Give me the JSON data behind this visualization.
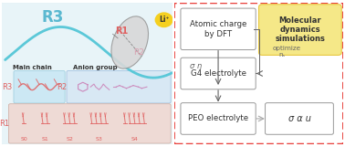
{
  "left_bg": "#e8f4f8",
  "left_border": "#b8d8e8",
  "right_border": "#e8403c",
  "curve_color": "#5bc8d8",
  "li_color": "#f5d020",
  "li_text": "Li⁺",
  "main_chain_label": "Main chain",
  "anion_group_label": "Anion group",
  "r1_label": "R1",
  "r2_label": "R2",
  "r3_label": "R3",
  "s_labels": [
    "S0",
    "S1",
    "S2",
    "S3",
    "S4"
  ],
  "box1_text": "Atomic charge\nby DFT",
  "box2_text": "G4 electrolyte",
  "box3_text": "PEO electrolyte",
  "box4_text": "σ α u",
  "yellow_box_text": "Molecular\ndynamics\nsimulations",
  "sigma_eta_label": "σ η",
  "optimize_label": "optimize",
  "ns_label": "nₛ",
  "box_border": "#999999",
  "text_red": "#e06060",
  "text_pink": "#d8a0b0",
  "text_blue": "#5ab8d0",
  "text_dark": "#555555",
  "yellow_bg": "#f5e888",
  "yellow_border": "#e8c840",
  "r3_box_bg": "#cce8f4",
  "r3_box_border": "#99ccdd",
  "r2_box_bg": "#d8e8f4",
  "r2_box_border": "#99bbdd",
  "r1_row_bg": "#eedad5",
  "r1_row_border": "#ccaaa0"
}
